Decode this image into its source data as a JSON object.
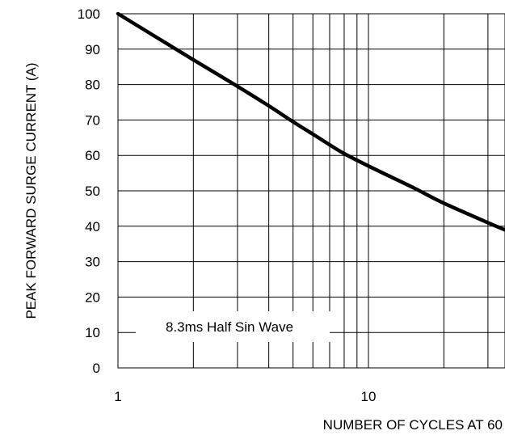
{
  "chart_data": {
    "type": "line",
    "title": "",
    "xlabel": "NUMBER OF CYCLES AT 60",
    "ylabel": "PEAK FORWARD SURGE CURRENT (A)",
    "x_scale": "log",
    "xlim": [
      1,
      35
    ],
    "ylim": [
      0,
      100
    ],
    "grid": true,
    "x_ticks": [
      {
        "value": 1,
        "label": "1"
      },
      {
        "value": 10,
        "label": "10"
      }
    ],
    "y_ticks": [
      {
        "value": 0,
        "label": "0"
      },
      {
        "value": 10,
        "label": "10"
      },
      {
        "value": 20,
        "label": "20"
      },
      {
        "value": 30,
        "label": "30"
      },
      {
        "value": 40,
        "label": "40"
      },
      {
        "value": 50,
        "label": "50"
      },
      {
        "value": 60,
        "label": "60"
      },
      {
        "value": 70,
        "label": "70"
      },
      {
        "value": 80,
        "label": "80"
      },
      {
        "value": 90,
        "label": "90"
      },
      {
        "value": 100,
        "label": "100"
      }
    ],
    "x_gridlines": [
      1,
      2,
      3,
      4,
      5,
      6,
      7,
      8,
      9,
      10,
      20,
      30
    ],
    "annotations": [
      "8.3ms Half Sin Wave"
    ],
    "series": [
      {
        "x": [
          1,
          2,
          3,
          4,
          5,
          6,
          7,
          8,
          10,
          15,
          20,
          30,
          35
        ],
        "y": [
          100,
          87,
          79.5,
          74,
          69.5,
          66,
          63,
          60.5,
          57,
          51,
          46.5,
          41,
          39
        ]
      }
    ]
  }
}
